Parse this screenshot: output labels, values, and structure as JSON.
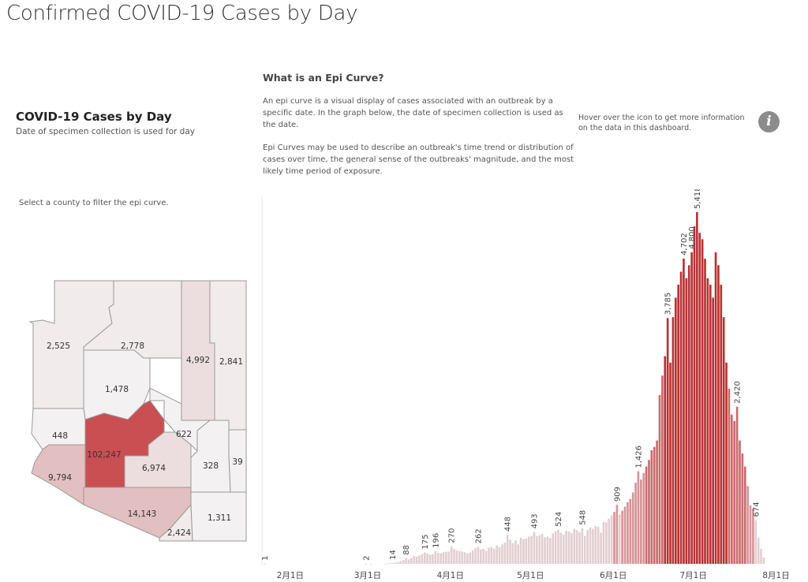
{
  "page": {
    "title": "Confirmed COVID-19 Cases by Day",
    "section_title": "COVID-19 Cases by Day",
    "section_subtitle": "Date of specimen collection is used for day",
    "filter_hint": "Select a county to filter the epi curve.",
    "epi_heading": "What is an Epi Curve?",
    "epi_para1": "An epi curve is a visual display of cases associated with an outbreak by a specific date. In the graph below, the date of specimen collection is used as the date.",
    "epi_para2": "Epi Curves may be used to describe an outbreak's time trend or distribution of cases over time, the general sense of the outbreaks' magnitude, and the most likely time period of exposure.",
    "info_text": "Hover over the icon to get more information on the data in this dashboard.",
    "info_icon": "info-icon"
  },
  "colors": {
    "low": "#eeeaea",
    "mid": "#e2bfc0",
    "high": "#c94f52",
    "bar_low": "#e3cfd0",
    "bar_mid": "#d69597",
    "bar_high": "#bb3033",
    "axis_text": "#444444"
  },
  "map": {
    "counties": [
      {
        "id": "mohave",
        "value": 2525,
        "label": "2,525"
      },
      {
        "id": "coconino",
        "value": 2778,
        "label": "2,778"
      },
      {
        "id": "navajo",
        "value": 4992,
        "label": "4,992"
      },
      {
        "id": "apache",
        "value": 2841,
        "label": "2,841"
      },
      {
        "id": "yavapai",
        "value": 1478,
        "label": "1,478"
      },
      {
        "id": "lapaz",
        "value": 448,
        "label": "448"
      },
      {
        "id": "gila",
        "value": 622,
        "label": "622"
      },
      {
        "id": "maricopa",
        "value": 102247,
        "label": "102,247"
      },
      {
        "id": "pinal",
        "value": 6974,
        "label": "6,974"
      },
      {
        "id": "graham",
        "value": 328,
        "label": "328"
      },
      {
        "id": "greenlee",
        "value": 39,
        "label": "39"
      },
      {
        "id": "yuma",
        "value": 9794,
        "label": "9,794"
      },
      {
        "id": "pima",
        "value": 14143,
        "label": "14,143"
      },
      {
        "id": "cochise",
        "value": 1311,
        "label": "1,311"
      },
      {
        "id": "santacruz",
        "value": 2424,
        "label": "2,424"
      }
    ]
  },
  "chart_data": {
    "type": "bar",
    "title": "",
    "xlabel": "",
    "ylabel": "",
    "x_start": "2020-01-22",
    "x_end": "2020-07-29",
    "x_ticks": [
      {
        "label": "2月1日",
        "day": 10
      },
      {
        "label": "3月1日",
        "day": 39
      },
      {
        "label": "4月1日",
        "day": 70
      },
      {
        "label": "5月1日",
        "day": 100
      },
      {
        "label": "6月1日",
        "day": 131
      },
      {
        "label": "7月1日",
        "day": 161
      },
      {
        "label": "8月1日",
        "day": 192
      }
    ],
    "ylim": [
      0,
      5600
    ],
    "grid": false,
    "values": [
      1,
      0,
      0,
      0,
      0,
      0,
      0,
      0,
      0,
      0,
      0,
      0,
      0,
      0,
      0,
      0,
      0,
      0,
      0,
      0,
      0,
      0,
      0,
      0,
      0,
      0,
      0,
      0,
      0,
      0,
      0,
      0,
      0,
      0,
      0,
      0,
      0,
      0,
      2,
      0,
      1,
      0,
      0,
      0,
      0,
      3,
      6,
      10,
      14,
      20,
      30,
      45,
      60,
      88,
      70,
      90,
      120,
      110,
      130,
      150,
      175,
      160,
      140,
      150,
      196,
      170,
      165,
      180,
      185,
      190,
      270,
      230,
      210,
      200,
      190,
      180,
      160,
      175,
      210,
      240,
      262,
      220,
      230,
      200,
      250,
      260,
      230,
      280,
      260,
      300,
      330,
      448,
      370,
      320,
      360,
      300,
      400,
      380,
      390,
      420,
      430,
      493,
      430,
      440,
      460,
      410,
      420,
      400,
      470,
      500,
      524,
      480,
      450,
      510,
      500,
      470,
      540,
      520,
      490,
      548,
      430,
      520,
      560,
      540,
      580,
      570,
      480,
      650,
      640,
      700,
      750,
      800,
      909,
      760,
      820,
      880,
      950,
      1000,
      1100,
      1250,
      1426,
      1300,
      1400,
      1500,
      1600,
      1750,
      1800,
      1900,
      2600,
      2900,
      3200,
      3785,
      3100,
      3800,
      4100,
      4300,
      4500,
      4702,
      4400,
      4600,
      4800,
      5200,
      5418,
      5100,
      5000,
      4700,
      4400,
      4300,
      4100,
      4800,
      4600,
      4300,
      3800,
      3100,
      2700,
      2300,
      2200,
      2420,
      1900,
      1700,
      1500,
      1200,
      900,
      850,
      674,
      400,
      230,
      100
    ]
  }
}
